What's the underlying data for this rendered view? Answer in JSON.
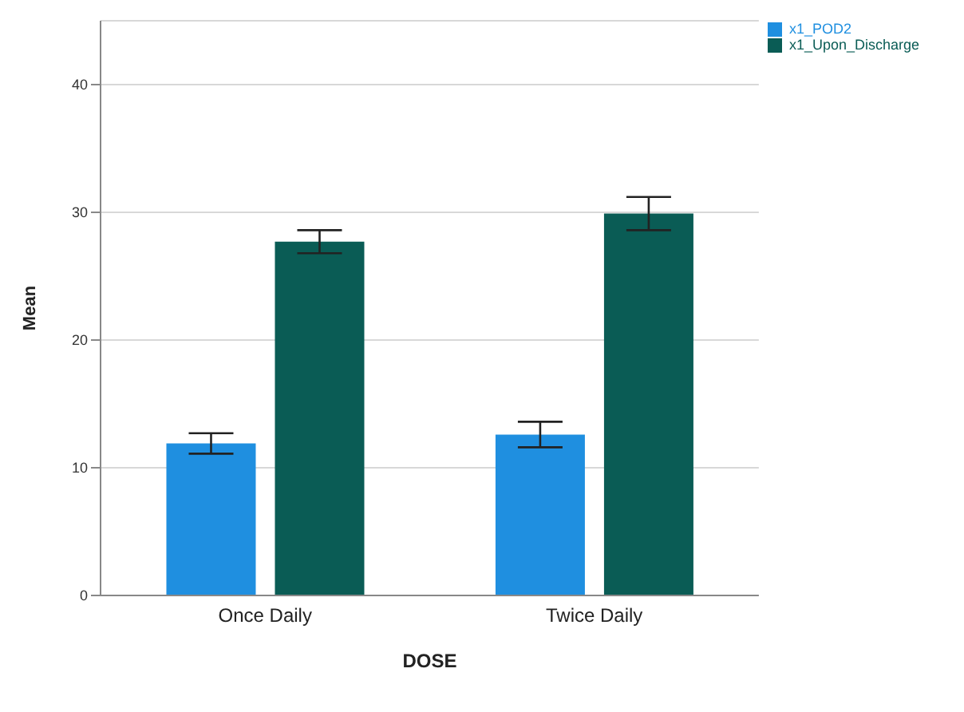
{
  "chart_data": {
    "type": "bar",
    "xlabel": "DOSE",
    "ylabel": "Mean",
    "categories": [
      "Once Daily",
      "Twice Daily"
    ],
    "series": [
      {
        "name": "x1_POD2",
        "color": "#1f8fe0",
        "values": [
          11.9,
          12.6
        ],
        "errors": [
          0.8,
          1.0
        ]
      },
      {
        "name": "x1_Upon_Discharge",
        "color": "#0a5c55",
        "values": [
          27.7,
          29.9
        ],
        "errors": [
          0.9,
          1.3
        ]
      }
    ],
    "ylim": [
      0,
      45
    ],
    "yticks": [
      0,
      10,
      20,
      30,
      40
    ],
    "grid": "y",
    "legend": "top right"
  }
}
